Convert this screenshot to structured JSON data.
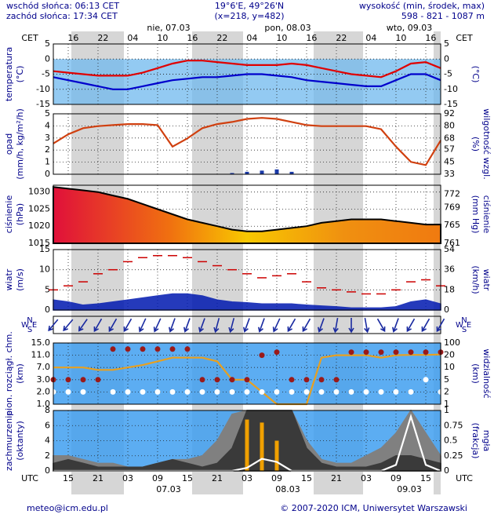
{
  "header": {
    "sunrise": "wschód słońca: 06:13 CET",
    "sunset": "zachód słońca: 17:34 CET",
    "coords": "19°6'E, 49°26'N",
    "grid": "(x=218,  y=482)",
    "elevation_title": "wysokość (min, środek, max)",
    "elevation": "598 - 821 - 1087 m"
  },
  "footer": {
    "email": "meteo@icm.edu.pl",
    "copyright": "© 2007-2020 ICM, Uniwersytet Warszawski"
  },
  "time_axis": {
    "xlim": [
      0,
      78
    ],
    "x": [
      0,
      3,
      6,
      9,
      12,
      15,
      18,
      21,
      24,
      27,
      30,
      33,
      36,
      39,
      42,
      45,
      48,
      51,
      54,
      57,
      60,
      63,
      66,
      69,
      72,
      75,
      78
    ],
    "utc_label": "UTC",
    "cet_label": "CET",
    "utc_ticks": [
      {
        "value": 3,
        "label": "15"
      },
      {
        "value": 9,
        "label": "21"
      },
      {
        "value": 15,
        "label": "03"
      },
      {
        "value": 21,
        "label": "09"
      },
      {
        "value": 27,
        "label": "15"
      },
      {
        "value": 33,
        "label": "21"
      },
      {
        "value": 39,
        "label": "03"
      },
      {
        "value": 45,
        "label": "09"
      },
      {
        "value": 51,
        "label": "15"
      },
      {
        "value": 57,
        "label": "21"
      },
      {
        "value": 63,
        "label": "03"
      },
      {
        "value": 69,
        "label": "09"
      },
      {
        "value": 75,
        "label": "15"
      }
    ],
    "cet_ticks": [
      {
        "value": 4,
        "label": "16"
      },
      {
        "value": 10,
        "label": "22"
      },
      {
        "value": 16,
        "label": "04"
      },
      {
        "value": 22,
        "label": "10"
      },
      {
        "value": 28,
        "label": "16"
      },
      {
        "value": 34,
        "label": "22"
      },
      {
        "value": 40,
        "label": "04"
      },
      {
        "value": 46,
        "label": "10"
      },
      {
        "value": 52,
        "label": "16"
      },
      {
        "value": 58,
        "label": "22"
      },
      {
        "value": 64,
        "label": "04"
      },
      {
        "value": 70,
        "label": "10"
      },
      {
        "value": 76,
        "label": "16"
      }
    ],
    "days_top": [
      "nie, 07.03",
      "pon, 08.03",
      "wto, 09.03"
    ],
    "days_bottom": [
      "07.03",
      "08.03",
      "09.03"
    ]
  },
  "wind_direction": {
    "compass": [
      "W",
      "N",
      "S",
      "E"
    ],
    "values": [
      40,
      40,
      35,
      30,
      30,
      30,
      25,
      25,
      20,
      20,
      20,
      15,
      15,
      20,
      20,
      25,
      30,
      30,
      20,
      10,
      0,
      350,
      330,
      20,
      30,
      30,
      30
    ]
  },
  "chart_data": [
    {
      "type": "line",
      "ylabel": [
        "temperatura",
        "(°C)"
      ],
      "y2label": [
        "(°C)"
      ],
      "ylim": [
        -15,
        5
      ],
      "yticks": [
        5,
        0,
        -5,
        -10,
        -15
      ],
      "grid": true,
      "series": [
        {
          "color": "#e00000",
          "style": "line",
          "values": [
            -4,
            -4.5,
            -5,
            -5.5,
            -5.5,
            -5.5,
            -4.5,
            -3,
            -1.5,
            -0.5,
            -0.5,
            -1,
            -1.5,
            -2,
            -2,
            -2,
            -1.5,
            -2,
            -3,
            -4,
            -5,
            -5.5,
            -6,
            -4,
            -1.5,
            -1,
            -3
          ]
        },
        {
          "color": "#0000cc",
          "style": "line",
          "values": [
            -6,
            -7,
            -8,
            -9,
            -10,
            -10,
            -9,
            -8,
            -7,
            -6.5,
            -6,
            -6,
            -5.5,
            -5,
            -5,
            -5.5,
            -6,
            -7,
            -7.5,
            -8,
            -8.5,
            -9,
            -9,
            -7,
            -5,
            -5,
            -7
          ]
        }
      ]
    },
    {
      "type": "combo",
      "ylabel": [
        "opad",
        "(mm/h, kg/m²/h)"
      ],
      "y2label": [
        "(%)",
        "wilgotność wzgl."
      ],
      "ylim": [
        0,
        5
      ],
      "yticks": [
        5,
        4,
        3,
        2,
        1,
        0
      ],
      "y2lim": [
        33,
        92
      ],
      "y2ticks": [
        92,
        80,
        68,
        57,
        45,
        33
      ],
      "grid": true,
      "series": [
        {
          "color": "#1a3aa8",
          "style": "bars",
          "values": [
            0,
            0,
            0,
            0,
            0,
            0,
            0,
            0,
            0,
            0,
            0,
            0,
            0.1,
            0.2,
            0.3,
            0.4,
            0.2,
            0,
            0,
            0,
            0,
            0,
            0,
            0,
            0,
            0,
            0
          ]
        },
        {
          "color": "#d04010",
          "style": "line",
          "axis": "y2",
          "values": [
            63,
            72,
            78,
            80,
            81,
            82,
            82,
            81,
            60,
            68,
            78,
            82,
            84,
            87,
            88,
            87,
            84,
            81,
            80,
            80,
            80,
            80,
            77,
            60,
            45,
            42,
            66
          ]
        }
      ]
    },
    {
      "type": "area",
      "ylabel": [
        "ciśnienie",
        "(hPa)"
      ],
      "y2label": [
        "(mm Hg)",
        "ciśnienie"
      ],
      "ylim": [
        1015,
        1032
      ],
      "yticks": [
        1030,
        1025,
        1020,
        1015
      ],
      "y2lim": [
        761,
        774
      ],
      "y2ticks": [
        772,
        769,
        765,
        761
      ],
      "grid": true,
      "series": [
        {
          "color": "#000000",
          "style": "area",
          "values": [
            1031.5,
            1031,
            1030.5,
            1030,
            1029,
            1028,
            1026.5,
            1025,
            1023.5,
            1022,
            1021,
            1020,
            1019,
            1018.5,
            1018.5,
            1019,
            1019.5,
            1020,
            1021,
            1021.5,
            1022,
            1022,
            1022,
            1021.5,
            1021,
            1020.5,
            1020.5
          ]
        }
      ]
    },
    {
      "type": "combo",
      "ylabel": [
        "wiatr",
        "(m/s)"
      ],
      "y2label": [
        "(km/h)",
        "wiatr"
      ],
      "ylim": [
        0,
        15
      ],
      "yticks": [
        15,
        10,
        5,
        0
      ],
      "y2lim": [
        0,
        54
      ],
      "y2ticks": [
        54,
        36,
        18,
        0
      ],
      "grid": true,
      "series": [
        {
          "color": "#0018b0",
          "style": "area",
          "values": [
            2.5,
            2,
            1.2,
            1.5,
            2,
            2.5,
            3,
            3.5,
            4,
            4,
            3.5,
            2.5,
            2,
            1.8,
            1.5,
            1.5,
            1.5,
            1.2,
            1,
            0.8,
            0.5,
            0.5,
            0.5,
            0.8,
            2,
            2.5,
            1.5
          ]
        },
        {
          "color": "#cc0000",
          "style": "dashes",
          "values": [
            5,
            6,
            7,
            9,
            10,
            12,
            13,
            13.5,
            13.5,
            13,
            12,
            11,
            10,
            9,
            8,
            8.5,
            9,
            7,
            5.5,
            5,
            4.5,
            4,
            4,
            5,
            7,
            7.5,
            6
          ]
        }
      ]
    },
    {
      "type": "scatter",
      "ylabel": [
        "pion. rozciągł. chm.",
        "(km)"
      ],
      "y2label": [
        "(km)",
        "widzialność"
      ],
      "y_scale": "tick-spaced",
      "ylim": [
        1,
        15
      ],
      "yticks": [
        {
          "value": 15,
          "label": "15.0"
        },
        {
          "value": 11,
          "label": "11.0"
        },
        {
          "value": 7,
          "label": "7.0"
        },
        {
          "value": 3,
          "label": "3.0"
        },
        {
          "value": 2,
          "label": "2.0"
        },
        {
          "value": 1,
          "label": "1.0"
        }
      ],
      "y2lim": [
        1,
        100
      ],
      "y2ticks": [
        100,
        20,
        10,
        5,
        2,
        1
      ],
      "grid": true,
      "series": [
        {
          "color": "#e8a020",
          "style": "line",
          "axis": "y2",
          "values": [
            10,
            10,
            10,
            9,
            9,
            10,
            12,
            15,
            18,
            18,
            18,
            15,
            5,
            5,
            2,
            1,
            1,
            1,
            18,
            20,
            20,
            20,
            18,
            20,
            22,
            22,
            25
          ]
        },
        {
          "color": "#9a1a1a",
          "style": "dots",
          "values": [
            3,
            3,
            3,
            3,
            13,
            13,
            13,
            13,
            13,
            13,
            3,
            3,
            3,
            3,
            11,
            12,
            3,
            3,
            3,
            3,
            12,
            12,
            12,
            12,
            12,
            12,
            12
          ]
        },
        {
          "color": "#ffffff",
          "style": "dots",
          "values": [
            2,
            2,
            2,
            null,
            2,
            2,
            2,
            2,
            2,
            2,
            2,
            2,
            2,
            2,
            2,
            2,
            2,
            2,
            2,
            2,
            2,
            2,
            2,
            2,
            2,
            3,
            2
          ]
        }
      ]
    },
    {
      "type": "area",
      "ylabel": [
        "zachmurzenie",
        "(oktanty)"
      ],
      "y2label": [
        "(frakcja)",
        "mgła"
      ],
      "ylim": [
        0,
        8
      ],
      "yticks": [
        8,
        6,
        4,
        2,
        0
      ],
      "y2lim": [
        0,
        1
      ],
      "y2ticks": [
        1,
        0.75,
        0.5,
        0.25,
        0
      ],
      "grid": true,
      "series": [
        {
          "color": "#808080",
          "style": "area",
          "values": [
            2,
            2,
            1.5,
            1,
            1,
            0.5,
            0.5,
            1,
            1.5,
            1.5,
            2,
            4,
            7.5,
            8,
            8,
            8,
            8,
            4,
            1.5,
            1,
            1,
            2,
            3,
            5,
            8,
            5,
            2
          ]
        },
        {
          "color": "#3a3a3a",
          "style": "area",
          "values": [
            1,
            1.5,
            1,
            0.5,
            0.5,
            0.5,
            0.5,
            1,
            1.5,
            1,
            0.5,
            1,
            3,
            8,
            8,
            8,
            8,
            3,
            1,
            0.5,
            0.5,
            0.5,
            1,
            2,
            2,
            1.5,
            1
          ]
        },
        {
          "color": "#f0a000",
          "style": "bars",
          "axis": "y2",
          "values": [
            0,
            0,
            0,
            0,
            0,
            0,
            0,
            0,
            0,
            0,
            0,
            0,
            0,
            0.85,
            0.8,
            0.5,
            0,
            0,
            0,
            0,
            0,
            0,
            0,
            0,
            0,
            0,
            0
          ]
        },
        {
          "color": "#ffffff",
          "style": "line",
          "axis": "y2",
          "values": [
            0,
            0,
            0,
            0,
            0,
            0,
            0,
            0,
            0,
            0,
            0,
            0,
            0,
            0.05,
            0.2,
            0.15,
            0,
            0,
            0,
            0,
            0,
            0,
            0,
            0.1,
            0.9,
            0.1,
            0
          ]
        }
      ]
    }
  ]
}
